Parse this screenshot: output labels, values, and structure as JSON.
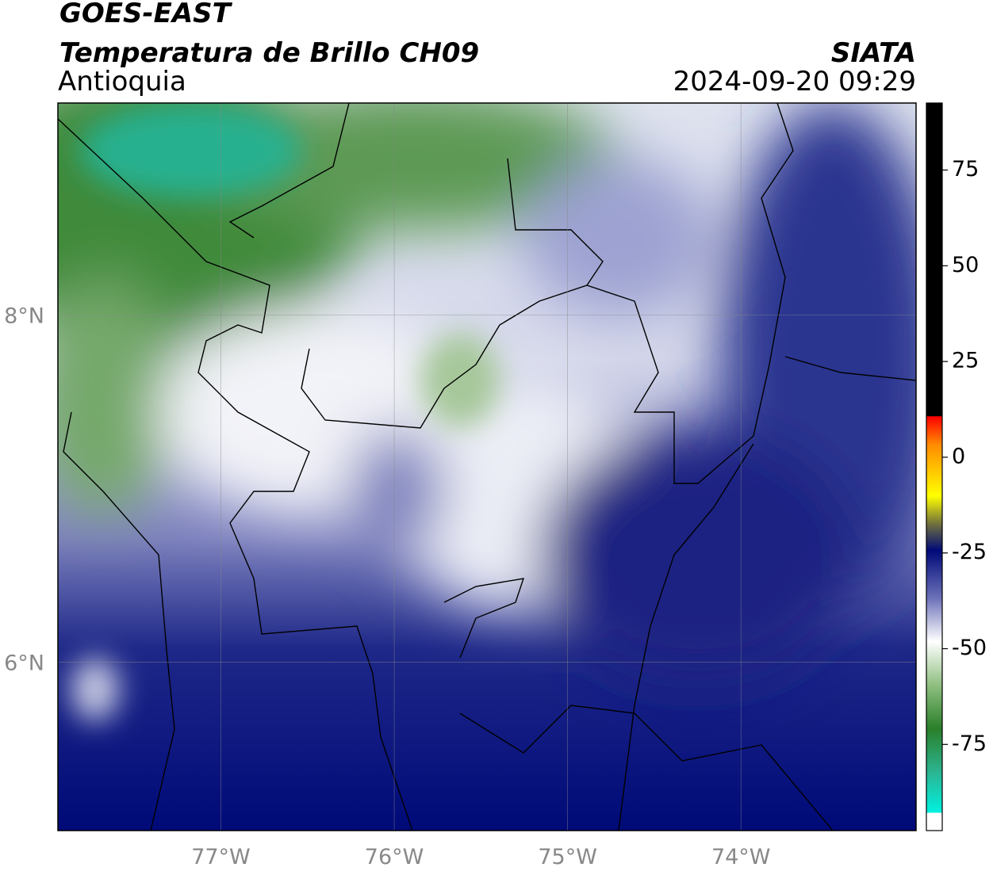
{
  "chart_data": {
    "type": "map",
    "title": "GOES-EAST",
    "subtitle": "Temperatura de Brillo CH09",
    "region": "Antioquia",
    "source": "SIATA",
    "timestamp": "2024-09-20 09:29",
    "xlim": [
      -77.94,
      -72.99
    ],
    "ylim": [
      5.03,
      9.22
    ],
    "xticks": [
      {
        "value": -77,
        "label": "77°W"
      },
      {
        "value": -76,
        "label": "76°W"
      },
      {
        "value": -75,
        "label": "75°W"
      },
      {
        "value": -74,
        "label": "74°W"
      }
    ],
    "yticks": [
      {
        "value": 6,
        "label": "6°N"
      },
      {
        "value": 8,
        "label": "8°N"
      }
    ],
    "grid": true,
    "colorbar": {
      "lim": [
        -97.5,
        92.5
      ],
      "ticks": [
        75,
        50,
        25,
        0,
        -25,
        -50,
        -75
      ]
    }
  }
}
